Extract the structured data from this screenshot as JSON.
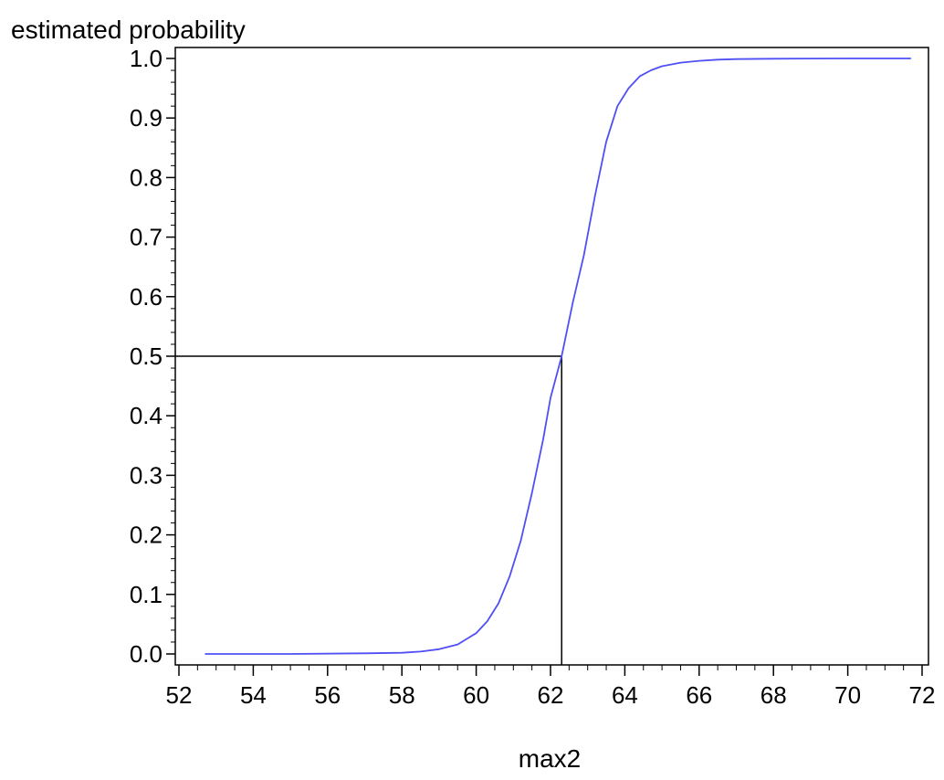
{
  "chart_data": {
    "type": "line",
    "title": "",
    "xlabel": "max2",
    "ylabel": "estimated probability",
    "xlim": [
      52,
      72
    ],
    "ylim": [
      0.0,
      1.0
    ],
    "x_ticks": [
      52,
      54,
      56,
      58,
      60,
      62,
      64,
      66,
      68,
      70,
      72
    ],
    "x_tick_labels": [
      "52",
      "54",
      "56",
      "58",
      "60",
      "62",
      "64",
      "66",
      "68",
      "70",
      "72"
    ],
    "y_ticks": [
      0.0,
      0.1,
      0.2,
      0.3,
      0.4,
      0.5,
      0.6,
      0.7,
      0.8,
      0.9,
      1.0
    ],
    "y_tick_labels": [
      "0.0",
      "0.1",
      "0.2",
      "0.3",
      "0.4",
      "0.5",
      "0.6",
      "0.7",
      "0.8",
      "0.9",
      "1.0"
    ],
    "grid": false,
    "legend": "none",
    "series": [
      {
        "color": "#4f4ff5",
        "x": [
          52.7,
          55.0,
          57.0,
          58.0,
          58.5,
          59.0,
          59.5,
          60.0,
          60.3,
          60.6,
          60.9,
          61.2,
          61.5,
          61.8,
          62.0,
          62.3,
          62.6,
          62.9,
          63.2,
          63.5,
          63.8,
          64.1,
          64.4,
          64.7,
          65.0,
          65.5,
          66.0,
          66.5,
          67.0,
          68.0,
          70.0,
          71.7
        ],
        "y": [
          0.0,
          0.0,
          0.001,
          0.002,
          0.004,
          0.008,
          0.016,
          0.035,
          0.055,
          0.085,
          0.13,
          0.19,
          0.27,
          0.36,
          0.43,
          0.5,
          0.59,
          0.67,
          0.77,
          0.86,
          0.92,
          0.95,
          0.97,
          0.98,
          0.987,
          0.993,
          0.996,
          0.998,
          0.999,
          0.9995,
          1.0,
          1.0
        ]
      }
    ],
    "reference": {
      "x": 62.3,
      "y": 0.5,
      "color": "#000000"
    },
    "frame_color": "#000000"
  }
}
